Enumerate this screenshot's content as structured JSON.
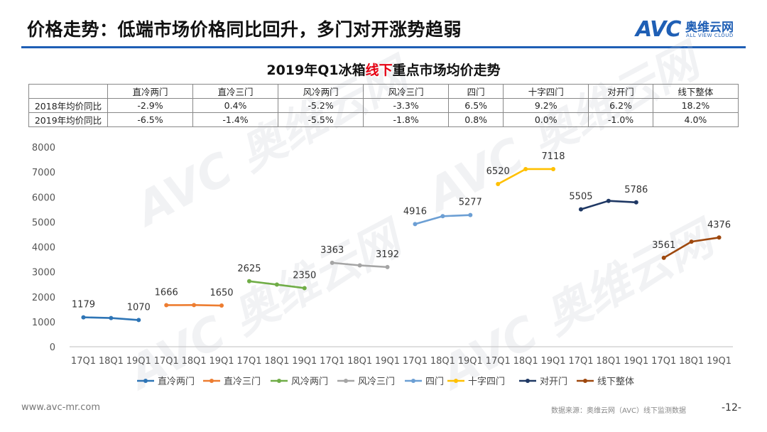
{
  "header": {
    "title": "价格走势：低端市场价格同比回升，多门对开涨势趋弱",
    "logo_mark": "AVC",
    "logo_cn": "奥维云网",
    "logo_en": "ALL VIEW CLOUD"
  },
  "chart_title": {
    "prefix": "2019年Q1冰箱",
    "highlight": "线下",
    "suffix": "重点市场均价走势"
  },
  "table": {
    "headers": [
      "直冷两门",
      "直冷三门",
      "风冷两门",
      "风冷三门",
      "四门",
      "十字四门",
      "对开门",
      "线下整体"
    ],
    "rows": [
      {
        "label": "2018年均价同比",
        "values": [
          "-2.9%",
          "0.4%",
          "-5.2%",
          "-3.3%",
          "6.5%",
          "9.2%",
          "6.2%",
          "18.2%"
        ]
      },
      {
        "label": "2019年均价同比",
        "values": [
          "-6.5%",
          "-1.4%",
          "-5.5%",
          "-1.8%",
          "0.8%",
          "0.0%",
          "-1.0%",
          "4.0%"
        ]
      }
    ]
  },
  "chart_data": {
    "type": "line",
    "title": "2019年Q1冰箱线下重点市场均价走势",
    "ylim": [
      0,
      8000
    ],
    "yticks": [
      0,
      1000,
      2000,
      3000,
      4000,
      5000,
      6000,
      7000,
      8000
    ],
    "periods": [
      "17Q1",
      "18Q1",
      "19Q1"
    ],
    "legend_position": "bottom",
    "series": [
      {
        "name": "直冷两门",
        "color": "#2e75b6",
        "values": [
          1179,
          1150,
          1070
        ],
        "labels": [
          "1179",
          "",
          "1070"
        ]
      },
      {
        "name": "直冷三门",
        "color": "#ed7d31",
        "values": [
          1666,
          1670,
          1650
        ],
        "labels": [
          "1666",
          "",
          "1650"
        ]
      },
      {
        "name": "风冷两门",
        "color": "#70ad47",
        "values": [
          2625,
          2490,
          2350
        ],
        "labels": [
          "2625",
          "",
          "2350"
        ]
      },
      {
        "name": "风冷三门",
        "color": "#a5a5a5",
        "values": [
          3363,
          3260,
          3192
        ],
        "labels": [
          "3363",
          "",
          "3192"
        ]
      },
      {
        "name": "四门",
        "color": "#6c9fd4",
        "values": [
          4916,
          5230,
          5277
        ],
        "labels": [
          "4916",
          "",
          "5277"
        ]
      },
      {
        "name": "十字四门",
        "color": "#ffc000",
        "values": [
          6520,
          7118,
          7118
        ],
        "labels": [
          "6520",
          "",
          "7118"
        ]
      },
      {
        "name": "对开门",
        "color": "#1f3864",
        "values": [
          5505,
          5845,
          5786
        ],
        "labels": [
          "5505",
          "",
          "5786"
        ]
      },
      {
        "name": "线下整体",
        "color": "#9e480e",
        "values": [
          3561,
          4210,
          4376
        ],
        "labels": [
          "3561",
          "",
          "4376"
        ]
      }
    ]
  },
  "footer": {
    "website": "www.avc-mr.com",
    "source": "数据来源：奥维云网（AVC）线下监测数据",
    "page": "-12-"
  }
}
